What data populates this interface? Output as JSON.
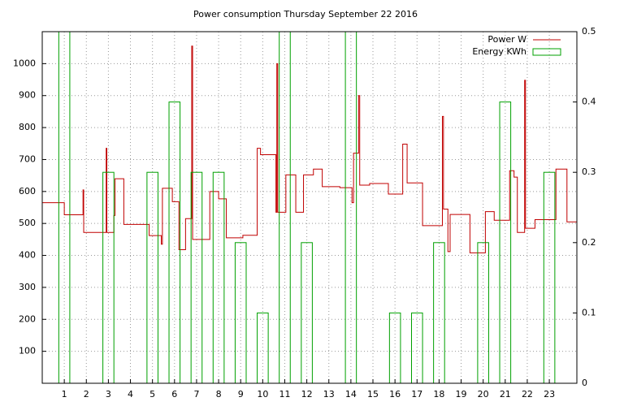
{
  "chart_data": {
    "type": "line",
    "title": "Power consumption Thursday September 22 2016",
    "xlim": [
      0,
      24.25
    ],
    "xticks": [
      1,
      2,
      3,
      4,
      5,
      6,
      7,
      8,
      9,
      10,
      11,
      12,
      13,
      14,
      15,
      16,
      17,
      18,
      19,
      20,
      21,
      22,
      23
    ],
    "ylim": [
      0,
      1100
    ],
    "yticks": [
      100,
      200,
      300,
      400,
      500,
      600,
      700,
      800,
      900,
      1000
    ],
    "y2lim": [
      0,
      0.5
    ],
    "y2ticks": [
      0,
      0.1,
      0.2,
      0.3,
      0.4,
      0.5
    ],
    "grid": true,
    "legend": "top-right",
    "series": [
      {
        "name": "Power W",
        "color": "#c00000",
        "x": [
          0,
          1,
          1,
          1.85,
          1.85,
          1.88,
          1.88,
          2.9,
          2.9,
          2.93,
          2.93,
          3.25,
          3.25,
          3.3,
          3.3,
          3.7,
          3.7,
          4.85,
          4.85,
          5.4,
          5.4,
          5.45,
          5.45,
          5.9,
          5.9,
          6.2,
          6.2,
          6.5,
          6.5,
          6.78,
          6.78,
          6.82,
          6.82,
          7.6,
          7.6,
          8,
          8,
          8.35,
          8.35,
          9.1,
          9.1,
          9.75,
          9.75,
          9.9,
          9.9,
          10.6,
          10.6,
          10.64,
          10.64,
          10.68,
          10.68,
          11.05,
          11.05,
          11.5,
          11.5,
          11.85,
          11.85,
          12.3,
          12.3,
          12.7,
          12.7,
          13.5,
          13.5,
          14.05,
          14.05,
          14.12,
          14.12,
          14.35,
          14.35,
          14.4,
          14.4,
          14.85,
          14.85,
          15.7,
          15.7,
          16.35,
          16.35,
          16.55,
          16.55,
          17.25,
          17.25,
          18.15,
          18.15,
          18.2,
          18.2,
          18.4,
          18.4,
          18.5,
          18.5,
          19.4,
          19.4,
          20.1,
          20.1,
          20.5,
          20.5,
          21.2,
          21.2,
          21.4,
          21.4,
          21.55,
          21.55,
          21.88,
          21.88,
          21.92,
          21.92,
          22.35,
          22.35,
          23.3,
          23.3,
          23.8,
          23.8,
          24.25
        ],
        "values": [
          565,
          565,
          527,
          527,
          605,
          605,
          472,
          472,
          735,
          735,
          472,
          472,
          525,
          525,
          640,
          640,
          497,
          497,
          462,
          462,
          435,
          435,
          610,
          610,
          568,
          568,
          418,
          418,
          515,
          515,
          1055,
          1055,
          450,
          450,
          600,
          600,
          577,
          577,
          455,
          455,
          463,
          463,
          735,
          735,
          715,
          715,
          535,
          535,
          1000,
          1000,
          535,
          535,
          652,
          652,
          535,
          535,
          652,
          652,
          670,
          670,
          615,
          615,
          612,
          612,
          565,
          565,
          720,
          720,
          900,
          900,
          620,
          620,
          625,
          625,
          592,
          592,
          748,
          748,
          627,
          627,
          493,
          493,
          835,
          835,
          545,
          545,
          412,
          412,
          528,
          528,
          408,
          408,
          537,
          537,
          510,
          510,
          665,
          665,
          645,
          645,
          472,
          472,
          948,
          948,
          485,
          485,
          512,
          512,
          670,
          670,
          505,
          505
        ]
      },
      {
        "name": "Energy KWh",
        "color": "#00a000",
        "axis": "y2",
        "style": "boxes",
        "x": [
          1,
          2,
          3,
          4,
          5,
          6,
          7,
          8,
          9,
          10,
          11,
          12,
          13,
          14,
          15,
          16,
          17,
          18,
          19,
          20,
          21,
          22,
          23
        ],
        "values": [
          0.5,
          0,
          0.3,
          0,
          0.3,
          0.4,
          0.3,
          0.3,
          0.2,
          0.1,
          0.5,
          0.2,
          0,
          0.5,
          0,
          0.1,
          0.1,
          0.2,
          0,
          0.2,
          0.4,
          0,
          0.3
        ]
      }
    ]
  }
}
